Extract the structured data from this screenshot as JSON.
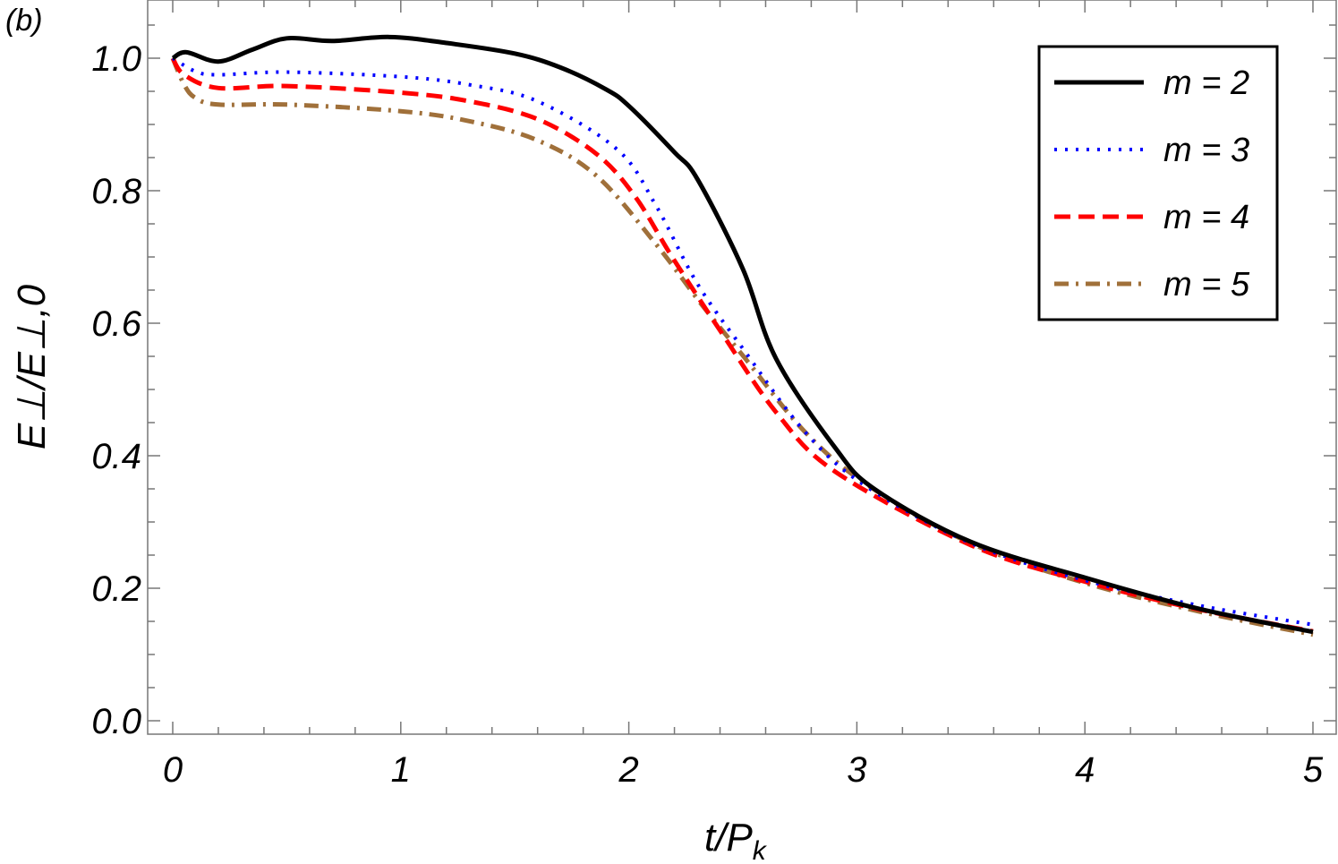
{
  "chart_data": {
    "type": "line",
    "panel_label": "(b)",
    "xlabel": "t/P",
    "xlabel_sub": "k",
    "ylabel": "E⊥/E⊥,0",
    "xlim": [
      0,
      5
    ],
    "ylim": [
      0,
      1.05
    ],
    "x_ticks": [
      "0",
      "1",
      "2",
      "3",
      "4",
      "5"
    ],
    "y_ticks": [
      "0.0",
      "0.2",
      "0.4",
      "0.6",
      "0.8",
      "1.0"
    ],
    "grid": false,
    "legend_position": "top-right",
    "series": [
      {
        "name": "m = 2",
        "color": "#000000",
        "style": "solid",
        "x": [
          0,
          0.06,
          0.2,
          0.35,
          0.5,
          0.7,
          0.95,
          1.2,
          1.5,
          1.7,
          1.9,
          2.0,
          2.2,
          2.3,
          2.5,
          2.645,
          2.905,
          3.08,
          3.5,
          4.0,
          4.5,
          5.0
        ],
        "y": [
          1.0,
          1.009,
          0.995,
          1.013,
          1.03,
          1.026,
          1.032,
          1.023,
          1.007,
          0.986,
          0.953,
          0.928,
          0.858,
          0.818,
          0.682,
          0.547,
          0.412,
          0.349,
          0.27,
          0.216,
          0.169,
          0.134
        ]
      },
      {
        "name": "m = 3",
        "color": "#0000ff",
        "style": "dotted",
        "x": [
          0,
          0.1,
          0.2,
          0.5,
          1.0,
          1.3,
          1.6,
          1.95,
          2.12,
          2.3,
          2.51,
          2.775,
          3.04,
          3.5,
          4.0,
          4.5,
          5.0
        ],
        "y": [
          1.0,
          0.98,
          0.975,
          0.979,
          0.972,
          0.96,
          0.935,
          0.862,
          0.777,
          0.66,
          0.557,
          0.435,
          0.354,
          0.268,
          0.212,
          0.174,
          0.145
        ]
      },
      {
        "name": "m = 4",
        "color": "#ff0000",
        "style": "dashed",
        "x": [
          0,
          0.05,
          0.2,
          0.5,
          1.0,
          1.3,
          1.6,
          1.86,
          2.03,
          2.19,
          2.41,
          2.645,
          2.905,
          3.5,
          4.0,
          4.5,
          5.0
        ],
        "y": [
          1.0,
          0.975,
          0.955,
          0.958,
          0.948,
          0.935,
          0.908,
          0.855,
          0.79,
          0.7,
          0.584,
          0.466,
          0.376,
          0.265,
          0.21,
          0.168,
          0.135
        ]
      },
      {
        "name": "m = 5",
        "color": "#a0703a",
        "style": "dashdot",
        "x": [
          0,
          0.05,
          0.1,
          0.2,
          0.5,
          1.0,
          1.3,
          1.6,
          1.86,
          2.12,
          2.32,
          2.51,
          2.775,
          3.05,
          3.5,
          4.0,
          4.5,
          5.0
        ],
        "y": [
          1.0,
          0.96,
          0.94,
          0.93,
          0.93,
          0.92,
          0.905,
          0.876,
          0.822,
          0.719,
          0.628,
          0.547,
          0.435,
          0.355,
          0.268,
          0.208,
          0.165,
          0.13
        ]
      }
    ]
  }
}
